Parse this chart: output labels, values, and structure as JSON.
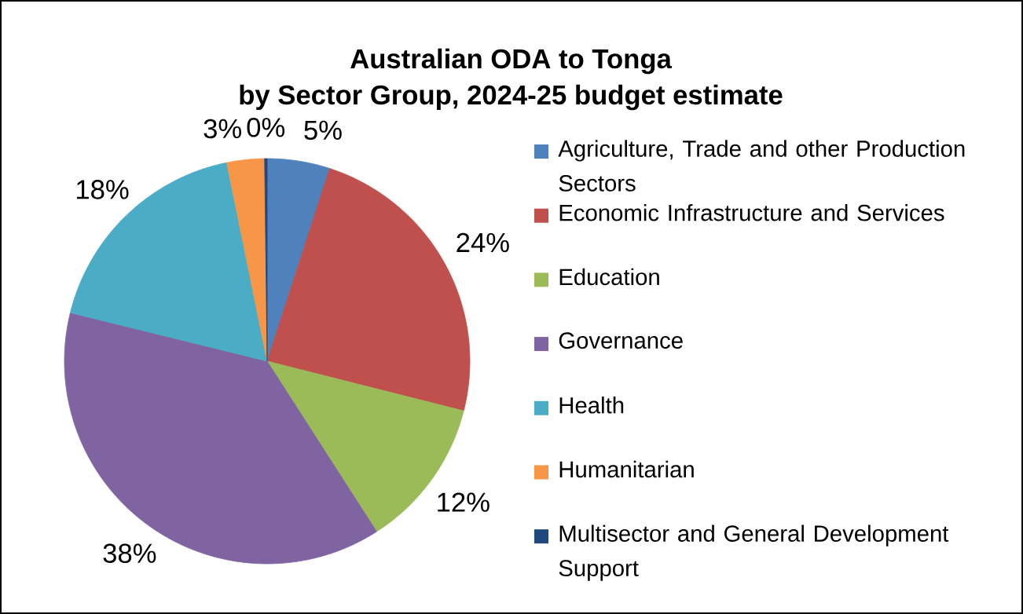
{
  "chart_data": {
    "type": "pie",
    "title": "Australian ODA to Tonga",
    "subtitle": "by Sector Group, 2024-25 budget estimate",
    "categories": [
      "Agriculture, Trade and other Production Sectors",
      "Economic Infrastructure and Services",
      "Education",
      "Governance",
      "Health",
      "Humanitarian",
      "Multisector and General Development Support"
    ],
    "values": [
      5,
      24,
      12,
      38,
      18,
      3,
      0.2
    ],
    "value_labels": [
      "5%",
      "24%",
      "12%",
      "38%",
      "18%",
      "3%",
      "0%"
    ],
    "colors": [
      "#4f81bd",
      "#c0504d",
      "#9bbb59",
      "#8064a2",
      "#4bacc6",
      "#f79646",
      "#1f497d"
    ],
    "legend": "right"
  }
}
